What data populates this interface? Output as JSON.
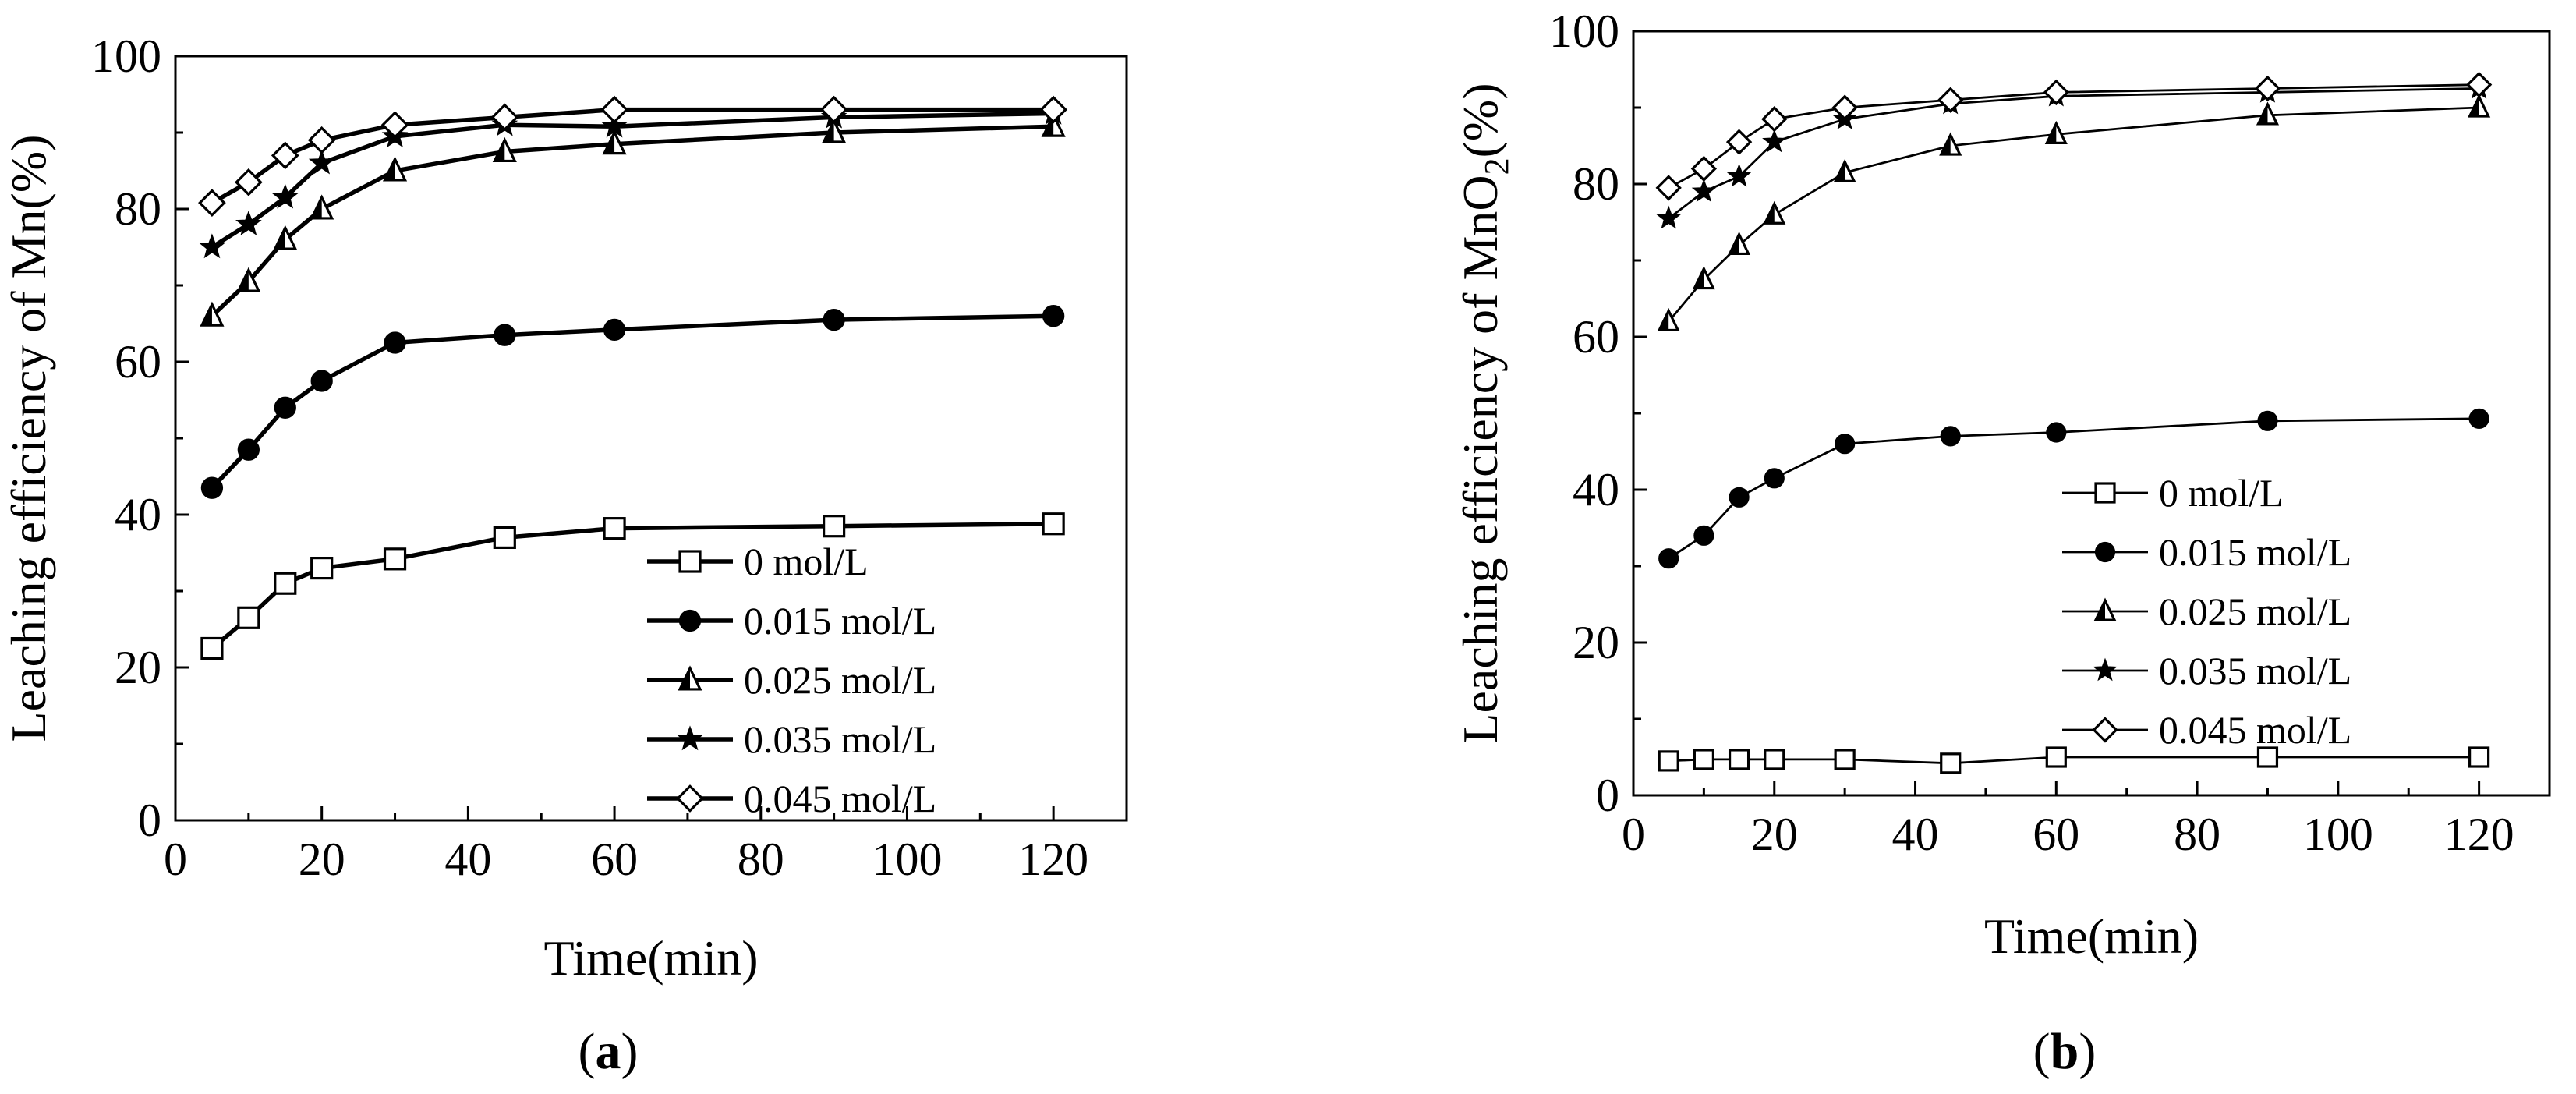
{
  "chart_data": [
    {
      "id": "a",
      "type": "line",
      "panel_label": {
        "open": "(",
        "letter": "a",
        "close": ")"
      },
      "xlabel": "Time(min)",
      "ylabel": "Leaching efficiency of Mn(%)",
      "ylabel_parts": {
        "main": "Leaching efficiency of Mn",
        "subscript": "",
        "tail": "(%)"
      },
      "xlim": [
        0,
        130
      ],
      "ylim": [
        0,
        100
      ],
      "xticks": [
        0,
        20,
        40,
        60,
        80,
        100,
        120
      ],
      "yticks": [
        0,
        20,
        40,
        60,
        80,
        100
      ],
      "legend_position": "lower-right",
      "x": [
        5,
        10,
        15,
        20,
        30,
        45,
        60,
        90,
        120
      ],
      "series": [
        {
          "name": "0 mol/L",
          "marker": "open-square",
          "values": [
            22.5,
            26.5,
            31,
            33,
            34.2,
            37,
            38.2,
            38.5,
            38.8
          ]
        },
        {
          "name": "0.015 mol/L",
          "marker": "filled-circle",
          "values": [
            43.5,
            48.5,
            54,
            57.5,
            62.5,
            63.5,
            64.2,
            65.5,
            66
          ]
        },
        {
          "name": "0.025 mol/L",
          "marker": "half-triangle",
          "values": [
            66,
            70.5,
            76,
            80,
            85,
            87.5,
            88.5,
            90,
            90.8
          ]
        },
        {
          "name": "0.035 mol/L",
          "marker": "star",
          "values": [
            75,
            78,
            81.5,
            86,
            89.5,
            91,
            90.8,
            92,
            92.5
          ]
        },
        {
          "name": "0.045 mol/L",
          "marker": "open-diamond",
          "values": [
            80.8,
            83.5,
            87,
            89,
            91,
            92,
            93,
            93,
            93
          ]
        }
      ]
    },
    {
      "id": "b",
      "type": "line",
      "panel_label": {
        "open": "(",
        "letter": "b",
        "close": ")"
      },
      "xlabel": "Time(min)",
      "ylabel": "Leaching efficiency of MnO2(%)",
      "ylabel_parts": {
        "main": "Leaching efficiency of MnO",
        "subscript": "2",
        "tail": "(%)"
      },
      "xlim": [
        0,
        130
      ],
      "ylim": [
        0,
        100
      ],
      "xticks": [
        0,
        20,
        40,
        60,
        80,
        100,
        120
      ],
      "yticks": [
        0,
        20,
        40,
        60,
        80,
        100
      ],
      "legend_position": "center-right",
      "x": [
        5,
        10,
        15,
        20,
        30,
        45,
        60,
        90,
        120
      ],
      "series": [
        {
          "name": "0 mol/L",
          "marker": "open-square",
          "values": [
            4.5,
            4.7,
            4.7,
            4.7,
            4.7,
            4.2,
            5,
            5,
            5
          ]
        },
        {
          "name": "0.015 mol/L",
          "marker": "filled-circle",
          "values": [
            31,
            34,
            39,
            41.5,
            46,
            47,
            47.5,
            49,
            49.3
          ]
        },
        {
          "name": "0.025 mol/L",
          "marker": "half-triangle",
          "values": [
            62,
            67.5,
            72,
            76,
            81.5,
            85,
            86.5,
            89,
            90
          ]
        },
        {
          "name": "0.035 mol/L",
          "marker": "star",
          "values": [
            75.5,
            79,
            81,
            85.5,
            88.5,
            90.5,
            91.5,
            92,
            92.5
          ]
        },
        {
          "name": "0.045 mol/L",
          "marker": "open-diamond",
          "values": [
            79.5,
            82,
            85.5,
            88.5,
            90,
            91,
            92,
            92.5,
            93
          ]
        }
      ]
    }
  ]
}
